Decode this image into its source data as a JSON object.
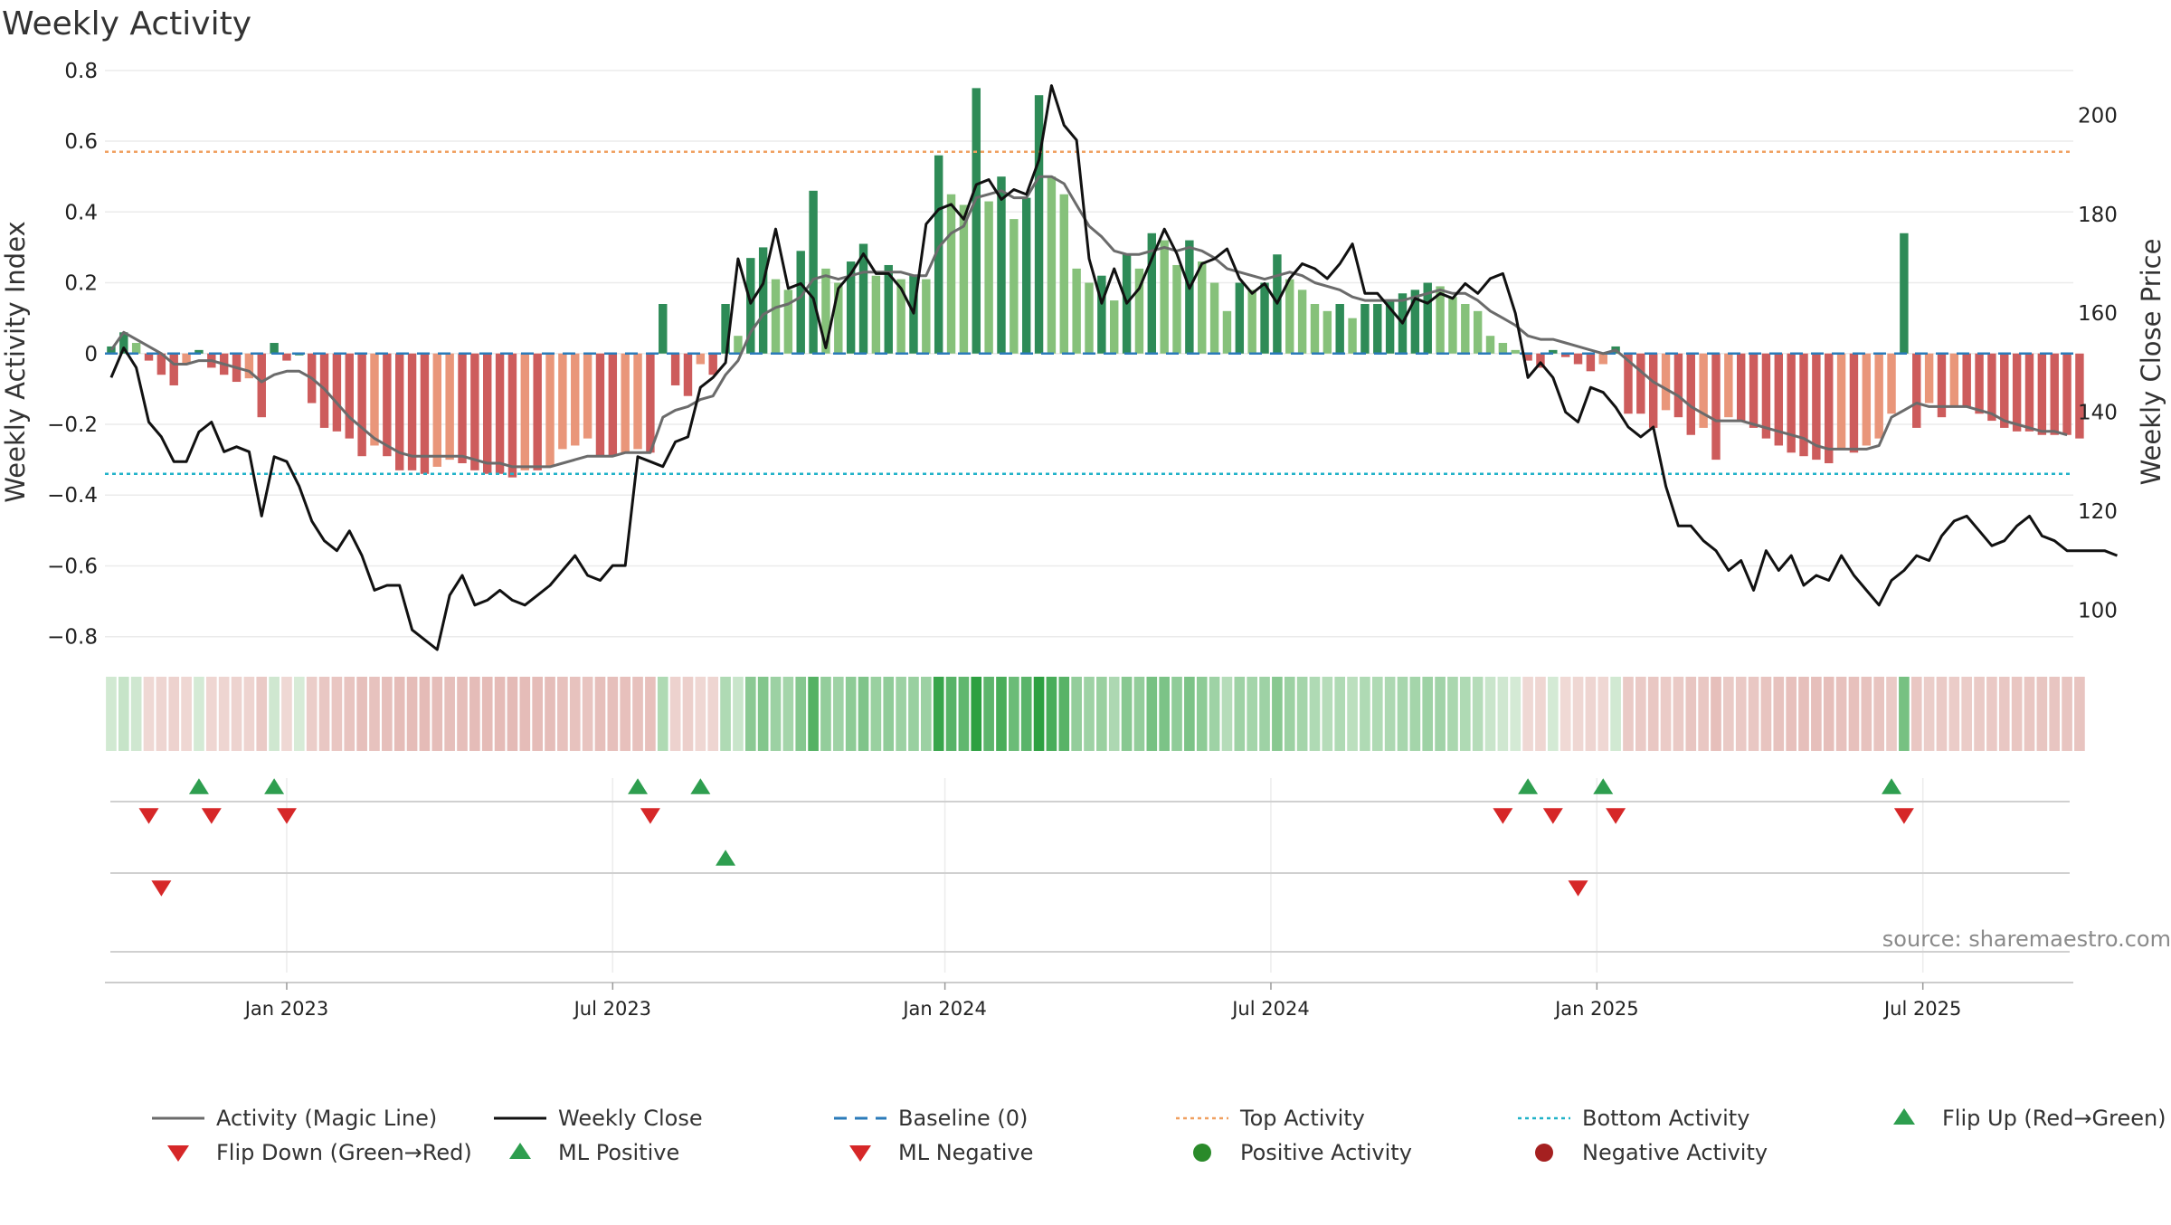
{
  "chart_data": {
    "type": "bar",
    "title": "Weekly Activity",
    "ylabel_left": "Weekly Activity Index",
    "ylabel_right": "Weekly Close Price",
    "source": "source: sharemaestro.com",
    "left_ylim": [
      -0.88,
      0.82
    ],
    "left_ticks": [
      {
        "v": 0.8,
        "label": "0.8"
      },
      {
        "v": 0.6,
        "label": "0.6"
      },
      {
        "v": 0.4,
        "label": "0.4"
      },
      {
        "v": 0.2,
        "label": "0.2"
      },
      {
        "v": 0,
        "label": "0"
      },
      {
        "v": -0.2,
        "label": "−0.2"
      },
      {
        "v": -0.4,
        "label": "−0.4"
      },
      {
        "v": -0.6,
        "label": "−0.6"
      },
      {
        "v": -0.8,
        "label": "−0.8"
      }
    ],
    "right_ylim": [
      88.9,
      210.5
    ],
    "right_ticks": [
      {
        "v": 200,
        "label": "200"
      },
      {
        "v": 180,
        "label": "180"
      },
      {
        "v": 160,
        "label": "160"
      },
      {
        "v": 140,
        "label": "140"
      },
      {
        "v": 120,
        "label": "120"
      },
      {
        "v": 100,
        "label": "100"
      }
    ],
    "x_ticks": [
      {
        "week": 14,
        "label": "Jan 2023"
      },
      {
        "week": 40,
        "label": "Jul 2023"
      },
      {
        "week": 66.5,
        "label": "Jan 2024"
      },
      {
        "week": 92.5,
        "label": "Jul 2024"
      },
      {
        "week": 118.5,
        "label": "Jan 2025"
      },
      {
        "week": 144.5,
        "label": "Jul 2025"
      }
    ],
    "weeks": 157,
    "activity": [
      0.02,
      0.06,
      0.03,
      -0.02,
      -0.06,
      -0.09,
      -0.03,
      0.01,
      -0.04,
      -0.06,
      -0.08,
      -0.07,
      -0.18,
      0.03,
      -0.02,
      0,
      -0.14,
      -0.21,
      -0.22,
      -0.24,
      -0.29,
      -0.26,
      -0.29,
      -0.33,
      -0.33,
      -0.34,
      -0.32,
      -0.3,
      -0.31,
      -0.33,
      -0.34,
      -0.34,
      -0.35,
      -0.33,
      -0.33,
      -0.32,
      -0.27,
      -0.26,
      -0.24,
      -0.29,
      -0.29,
      -0.28,
      -0.27,
      -0.28,
      0.14,
      -0.09,
      -0.12,
      -0.03,
      -0.06,
      0.14,
      0.05,
      0.27,
      0.3,
      0.21,
      0.18,
      0.29,
      0.46,
      0.24,
      0.2,
      0.26,
      0.31,
      0.22,
      0.25,
      0.21,
      0.22,
      0.21,
      0.56,
      0.45,
      0.42,
      0.75,
      0.43,
      0.5,
      0.38,
      0.44,
      0.73,
      0.5,
      0.45,
      0.24,
      0.2,
      0.22,
      0.15,
      0.28,
      0.24,
      0.34,
      0.32,
      0.25,
      0.32,
      0.26,
      0.2,
      0.12,
      0.2,
      0.18,
      0.2,
      0.28,
      0.21,
      0.18,
      0.14,
      0.12,
      0.14,
      0.1,
      0.14,
      0.14,
      0.15,
      0.17,
      0.18,
      0.2,
      0.19,
      0.16,
      0.14,
      0.12,
      0.05,
      0.03,
      0.01,
      -0.02,
      -0.04,
      0.01,
      -0.01,
      -0.03,
      -0.05,
      -0.03,
      0.02,
      -0.17,
      -0.17,
      -0.21,
      -0.16,
      -0.18,
      -0.23,
      -0.21,
      -0.3,
      -0.18,
      -0.19,
      -0.21,
      -0.24,
      -0.26,
      -0.28,
      -0.29,
      -0.3,
      -0.31,
      -0.27,
      -0.28,
      -0.26,
      -0.24,
      -0.17,
      0.34,
      -0.21,
      -0.14,
      -0.18,
      -0.15,
      -0.15,
      -0.17,
      -0.19,
      -0.21,
      -0.22,
      -0.22,
      -0.23,
      -0.23,
      -0.23,
      -0.24
    ],
    "magic_line": [
      0.01,
      0.06,
      0.04,
      0.02,
      0,
      -0.03,
      -0.03,
      -0.02,
      -0.02,
      -0.03,
      -0.04,
      -0.05,
      -0.08,
      -0.06,
      -0.05,
      -0.05,
      -0.07,
      -0.1,
      -0.14,
      -0.18,
      -0.21,
      -0.24,
      -0.26,
      -0.28,
      -0.29,
      -0.29,
      -0.29,
      -0.29,
      -0.29,
      -0.3,
      -0.31,
      -0.31,
      -0.32,
      -0.32,
      -0.32,
      -0.32,
      -0.31,
      -0.3,
      -0.29,
      -0.29,
      -0.29,
      -0.28,
      -0.28,
      -0.28,
      -0.18,
      -0.16,
      -0.15,
      -0.13,
      -0.12,
      -0.06,
      -0.02,
      0.06,
      0.11,
      0.13,
      0.14,
      0.16,
      0.21,
      0.22,
      0.21,
      0.22,
      0.23,
      0.23,
      0.23,
      0.23,
      0.22,
      0.22,
      0.3,
      0.34,
      0.36,
      0.44,
      0.45,
      0.46,
      0.44,
      0.44,
      0.5,
      0.5,
      0.48,
      0.42,
      0.36,
      0.33,
      0.29,
      0.28,
      0.28,
      0.29,
      0.3,
      0.29,
      0.3,
      0.29,
      0.27,
      0.24,
      0.23,
      0.22,
      0.21,
      0.22,
      0.23,
      0.22,
      0.2,
      0.19,
      0.18,
      0.16,
      0.15,
      0.15,
      0.15,
      0.15,
      0.16,
      0.17,
      0.18,
      0.17,
      0.17,
      0.15,
      0.12,
      0.1,
      0.08,
      0.05,
      0.04,
      0.04,
      0.03,
      0.02,
      0.01,
      0,
      0.01,
      -0.02,
      -0.05,
      -0.08,
      -0.1,
      -0.12,
      -0.15,
      -0.17,
      -0.19,
      -0.19,
      -0.19,
      -0.2,
      -0.21,
      -0.22,
      -0.23,
      -0.24,
      -0.26,
      -0.27,
      -0.27,
      -0.27,
      -0.27,
      -0.26,
      -0.18,
      -0.16,
      -0.14,
      -0.15,
      -0.15,
      -0.15,
      -0.15,
      -0.16,
      -0.17,
      -0.19,
      -0.2,
      -0.21,
      -0.22,
      -0.22,
      -0.23
    ],
    "weekly_close": [
      147,
      153,
      149,
      138,
      135,
      130,
      130,
      136,
      138,
      132,
      133,
      132,
      119,
      131,
      130,
      125,
      118,
      114,
      112,
      116,
      111,
      104,
      105,
      105,
      96,
      94,
      92,
      103,
      107,
      101,
      102,
      104,
      102,
      101,
      103,
      105,
      108,
      111,
      107,
      106,
      109,
      109,
      131,
      130,
      129,
      134,
      135,
      145,
      147,
      150,
      171,
      162,
      166,
      177,
      165,
      166,
      163,
      153,
      165,
      168,
      172,
      168,
      168,
      165,
      160,
      178,
      181,
      182,
      179,
      186,
      187,
      183,
      185,
      184,
      191,
      206,
      198,
      195,
      171,
      162,
      169,
      162,
      165,
      171,
      177,
      172,
      165,
      170,
      171,
      173,
      167,
      164,
      166,
      162,
      167,
      170,
      169,
      167,
      170,
      174,
      164,
      164,
      161,
      158,
      163,
      162,
      164,
      163,
      166,
      164,
      167,
      168,
      160,
      147,
      150,
      147,
      140,
      138,
      145,
      144,
      141,
      137,
      135,
      137,
      125,
      117,
      117,
      114,
      112,
      108,
      110,
      104,
      112,
      108,
      111,
      105,
      107,
      106,
      111,
      107,
      104,
      101,
      106,
      108,
      111,
      110,
      115,
      118,
      119,
      116,
      113,
      114,
      117,
      119,
      115,
      114,
      112,
      112,
      112,
      112,
      111
    ],
    "series": [
      {
        "name": "Activity (Magic Line)",
        "color": "#6b6b6b",
        "style": "solid"
      },
      {
        "name": "Weekly Close",
        "color": "#111111",
        "style": "solid"
      },
      {
        "name": "Baseline (0)",
        "color": "#2b7bba",
        "style": "dashed"
      },
      {
        "name": "Top Activity",
        "value": 0.57,
        "color": "#f0a060",
        "style": "dotted"
      },
      {
        "name": "Bottom Activity",
        "value": -0.34,
        "color": "#20b2c8",
        "style": "dotted"
      },
      {
        "name": "Flip Up (Red→Green)",
        "color": "#2e9e4f",
        "marker": "triangle-up"
      },
      {
        "name": "Flip Down (Green→Red)",
        "color": "#d62728",
        "marker": "triangle-down"
      },
      {
        "name": "ML Positive",
        "color": "#2e9e4f",
        "marker": "triangle-up"
      },
      {
        "name": "ML Negative",
        "color": "#d62728",
        "marker": "triangle-down"
      },
      {
        "name": "Positive Activity",
        "color": "#2a8a2a",
        "marker": "circle"
      },
      {
        "name": "Negative Activity",
        "color": "#a52020",
        "marker": "circle"
      }
    ],
    "flip_up_weeks": [
      7,
      13,
      42,
      47,
      113,
      119,
      142
    ],
    "flip_down_weeks": [
      3,
      8,
      14,
      43,
      111,
      115,
      120,
      143
    ],
    "ml_positive_weeks": [
      49
    ],
    "ml_negative_weeks": [
      4,
      117
    ]
  }
}
